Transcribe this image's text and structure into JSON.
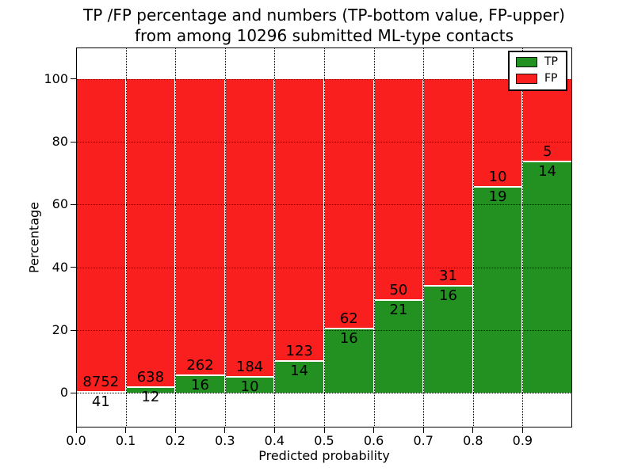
{
  "colors": {
    "tp": "#229122",
    "fp": "#f91f1f",
    "grid": "#000000",
    "background": "#ffffff",
    "bar_edge": "#ffffff"
  },
  "chart_data": {
    "type": "bar",
    "stacked": true,
    "normalized_to_percent": 100,
    "title": "TP /FP percentage and numbers (TP-bottom value, FP-upper)\nfrom among 10296 submitted ML-type contacts",
    "title_line1": "TP /FP percentage and numbers (TP-bottom value, FP-upper)",
    "title_line2": "from among 10296 submitted ML-type contacts",
    "xlabel": "Predicted probability",
    "ylabel": "Percentage",
    "total_contacts": 10296,
    "bin_start": [
      0.0,
      0.1,
      0.2,
      0.3,
      0.4,
      0.5,
      0.6,
      0.7,
      0.8,
      0.9
    ],
    "bin_width": 0.1,
    "series": [
      {
        "name": "TP",
        "values": [
          41,
          12,
          16,
          10,
          14,
          16,
          21,
          16,
          19,
          14
        ]
      },
      {
        "name": "FP",
        "values": [
          8752,
          638,
          262,
          184,
          123,
          62,
          50,
          31,
          10,
          5
        ]
      }
    ],
    "tp_percent_est": [
      0.5,
      1.8,
      5.8,
      5.2,
      10.2,
      20.5,
      29.6,
      34.0,
      65.5,
      73.7
    ],
    "xticks": [
      0.0,
      0.1,
      0.2,
      0.3,
      0.4,
      0.5,
      0.6,
      0.7,
      0.8,
      0.9
    ],
    "yticks": [
      0,
      20,
      40,
      60,
      80,
      100
    ],
    "xlim": [
      0.0,
      1.0
    ],
    "ylim": [
      -11,
      110
    ],
    "grid": true,
    "legend_position": "upper right"
  }
}
